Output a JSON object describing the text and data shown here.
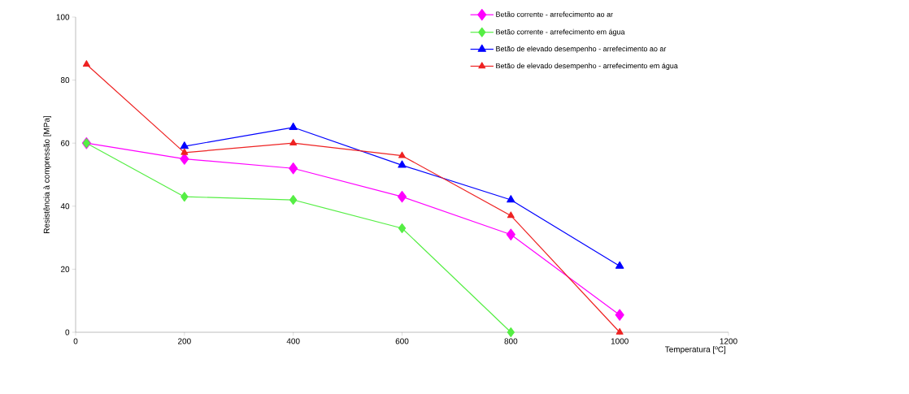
{
  "chart_data": {
    "type": "line",
    "xlabel": "Temperatura [ºC]",
    "ylabel": "Resistência à compressão [MPa]",
    "xlim": [
      0,
      1200
    ],
    "ylim": [
      0,
      100
    ],
    "xticks": [
      0,
      200,
      400,
      600,
      800,
      1000,
      1200
    ],
    "yticks": [
      0,
      20,
      40,
      60,
      80,
      100
    ],
    "grid": false,
    "legend": "top right",
    "line_style": "solid",
    "series": [
      {
        "name": "Betão corrente - arrefecimento ao ar",
        "color": "#ff00ff",
        "marker": "diamond",
        "x": [
          20,
          200,
          400,
          600,
          800,
          1000
        ],
        "values": [
          60,
          55,
          52,
          43,
          31,
          5.5
        ]
      },
      {
        "name": "Betão corrente - arrefecimento em água",
        "color": "#55ee44",
        "marker": "diamond",
        "x": [
          20,
          200,
          400,
          600,
          800
        ],
        "values": [
          60,
          43,
          42,
          33,
          0
        ]
      },
      {
        "name": "Betão de elevado desempenho - arrefecimento ao ar",
        "color": "#0000ff",
        "marker": "triangle",
        "x": [
          200,
          400,
          600,
          800,
          1000
        ],
        "values": [
          59,
          65,
          53,
          42,
          21
        ]
      },
      {
        "name": "Betão de elevado desempenho - arrefecimento em água",
        "color": "#ee2222",
        "marker": "triangle",
        "x": [
          20,
          200,
          400,
          600,
          800,
          1000
        ],
        "values": [
          85,
          57,
          60,
          56,
          37,
          0
        ]
      }
    ]
  }
}
